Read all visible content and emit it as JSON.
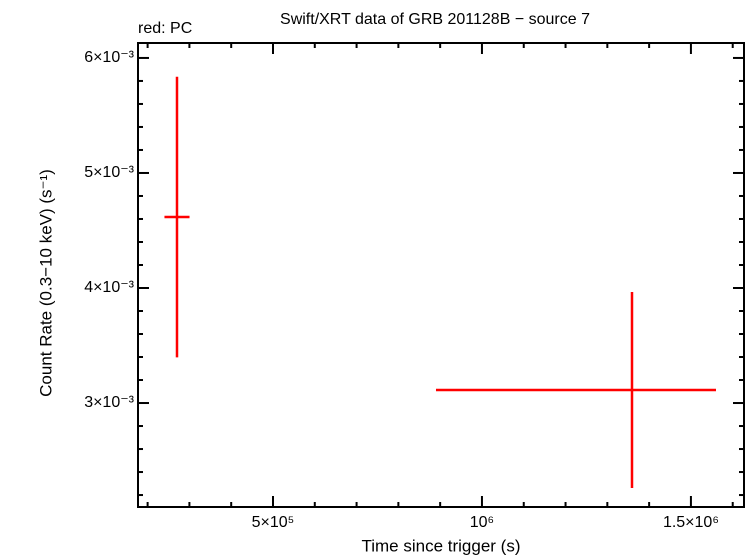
{
  "chart_data": {
    "type": "errorbar",
    "title": "Swift/XRT data of GRB 201128B − source 7",
    "annotation": "red: PC",
    "x_label": "Time since trigger (s)",
    "y_label": "Count Rate (0.3−10 keV) (s⁻¹)",
    "xlim": [
      177000,
      1627000
    ],
    "ylim": [
      0.002096,
      0.00613
    ],
    "xticks": [
      {
        "value": 500000,
        "label": "5×10⁵"
      },
      {
        "value": 1000000,
        "label": "10⁶"
      },
      {
        "value": 1500000,
        "label": "1.5×10⁶"
      }
    ],
    "yticks": [
      {
        "value": 0.003,
        "label": "3×10⁻³"
      },
      {
        "value": 0.004,
        "label": "4×10⁻³"
      },
      {
        "value": 0.005,
        "label": "5×10⁻³"
      },
      {
        "value": 0.006,
        "label": "6×10⁻³"
      }
    ],
    "x_minor_ticks": [
      200000,
      300000,
      400000,
      600000,
      700000,
      800000,
      900000,
      1100000,
      1200000,
      1300000,
      1400000,
      1600000
    ],
    "y_minor_ticks": [
      0.0022,
      0.0024,
      0.0026,
      0.0028,
      0.0032,
      0.0034,
      0.0036,
      0.0038,
      0.0042,
      0.0044,
      0.0046,
      0.0048,
      0.0052,
      0.0054,
      0.0056,
      0.0058
    ],
    "series": [
      {
        "color": "#ff0000",
        "x": [
          270300,
          1359000
        ],
        "xerr_minus": [
          30000,
          469000
        ],
        "xerr_plus": [
          30000,
          201000
        ],
        "values": [
          0.004617,
          0.003113
        ],
        "yerr": [
          0.00122,
          0.000852
        ]
      }
    ]
  }
}
